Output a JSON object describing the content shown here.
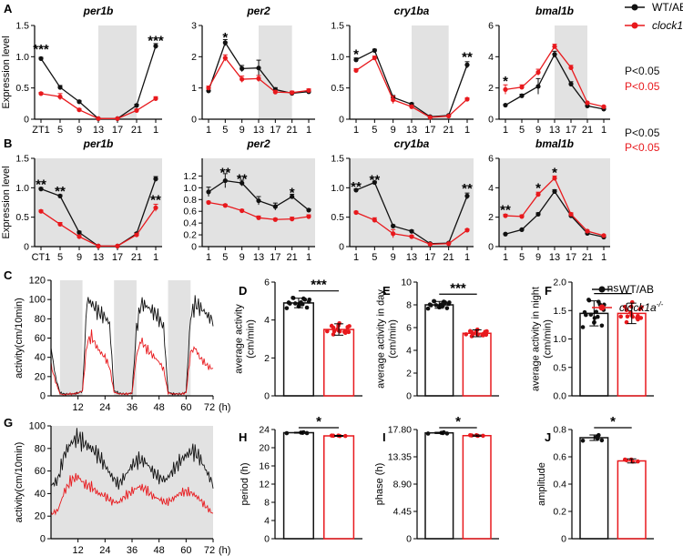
{
  "colors": {
    "wt": "#111111",
    "ko": "#e8191d",
    "shade": "#e2e2e2"
  },
  "legend": {
    "wt_label": "WT/AB",
    "ko_label": "clock1a",
    "ko_sup": "-/-",
    "p_wt": "P<0.05",
    "p_ko": "P<0.05"
  },
  "panels": {
    "A": "A",
    "B": "B",
    "C": "C",
    "D": "D",
    "E": "E",
    "F": "F",
    "G": "G",
    "H": "H",
    "I": "I",
    "J": "J"
  },
  "chart_data": [
    {
      "id": "A-per1b",
      "panel": "A",
      "type": "line",
      "title": "per1b",
      "ylabel": "Expression level",
      "ylim": [
        0,
        1.5
      ],
      "yticks": [
        "0",
        "0.5",
        "1.0",
        "1.5"
      ],
      "ytick_values": [
        0,
        0.5,
        1.0,
        1.5
      ],
      "categories": [
        "ZT1",
        "5",
        "9",
        "13",
        "17",
        "21",
        "1"
      ],
      "shade_categories": [
        3,
        5
      ],
      "series": [
        {
          "values": [
            0.97,
            0.51,
            0.28,
            0.01,
            0.01,
            0.22,
            1.17
          ],
          "err": [
            0.02,
            0.03,
            0.02,
            0.01,
            0.01,
            0.02,
            0.04
          ]
        },
        {
          "values": [
            0.41,
            0.36,
            0.15,
            0.01,
            0.01,
            0.14,
            0.33
          ],
          "err": [
            0.02,
            0.05,
            0.02,
            0.01,
            0.01,
            0.02,
            0.03
          ]
        }
      ],
      "stars": [
        {
          "i": 0,
          "y": 1.12,
          "t": "***"
        },
        {
          "i": 6,
          "y": 1.26,
          "t": "***"
        }
      ]
    },
    {
      "id": "A-per2",
      "panel": "A",
      "type": "line",
      "title": "per2",
      "ylabel": "",
      "ylim": [
        0,
        3
      ],
      "yticks": [
        "0",
        "1",
        "2",
        "3"
      ],
      "ytick_values": [
        0,
        1,
        2,
        3
      ],
      "categories": [
        "1",
        "5",
        "9",
        "13",
        "17",
        "21",
        "1"
      ],
      "shade_categories": [
        3,
        5
      ],
      "series": [
        {
          "values": [
            0.91,
            2.45,
            1.62,
            1.64,
            0.95,
            0.83,
            0.88
          ],
          "err": [
            0.08,
            0.1,
            0.1,
            0.25,
            0.06,
            0.05,
            0.05
          ]
        },
        {
          "values": [
            1.0,
            1.96,
            1.28,
            1.3,
            0.87,
            0.85,
            0.92
          ],
          "err": [
            0.06,
            0.1,
            0.1,
            0.1,
            0.05,
            0.05,
            0.05
          ]
        }
      ],
      "stars": [
        {
          "i": 1,
          "y": 2.62,
          "t": "*"
        }
      ]
    },
    {
      "id": "A-cry1ba",
      "panel": "A",
      "type": "line",
      "title": "cry1ba",
      "ylabel": "",
      "ylim": [
        0,
        1.5
      ],
      "yticks": [
        "0",
        "0.5",
        "1.0",
        "1.5"
      ],
      "ytick_values": [
        0,
        0.5,
        1.0,
        1.5
      ],
      "categories": [
        "1",
        "5",
        "9",
        "13",
        "17",
        "21",
        "1"
      ],
      "shade_categories": [
        3,
        5
      ],
      "series": [
        {
          "values": [
            0.95,
            1.1,
            0.35,
            0.24,
            0.04,
            0.06,
            0.87
          ],
          "err": [
            0.03,
            0.02,
            0.03,
            0.02,
            0.01,
            0.01,
            0.05
          ]
        },
        {
          "values": [
            0.78,
            0.98,
            0.31,
            0.2,
            0.03,
            0.05,
            0.32
          ],
          "err": [
            0.03,
            0.03,
            0.06,
            0.02,
            0.01,
            0.01,
            0.02
          ]
        }
      ],
      "stars": [
        {
          "i": 0,
          "y": 1.04,
          "t": "*"
        },
        {
          "i": 6,
          "y": 1.0,
          "t": "**"
        }
      ]
    },
    {
      "id": "A-bmal1b",
      "panel": "A",
      "type": "line",
      "title": "bmal1b",
      "ylabel": "",
      "ylim": [
        0,
        6
      ],
      "yticks": [
        "0",
        "2",
        "4",
        "6"
      ],
      "ytick_values": [
        0,
        2,
        4,
        6
      ],
      "categories": [
        "1",
        "5",
        "9",
        "13",
        "17",
        "21",
        "1"
      ],
      "shade_categories": [
        3,
        5
      ],
      "series": [
        {
          "values": [
            0.9,
            1.5,
            2.1,
            4.15,
            2.25,
            0.85,
            0.65
          ],
          "err": [
            0.05,
            0.1,
            0.5,
            0.2,
            0.15,
            0.05,
            0.05
          ]
        },
        {
          "values": [
            1.9,
            2.05,
            3.0,
            4.65,
            3.3,
            1.05,
            0.8
          ],
          "err": [
            0.3,
            0.15,
            0.2,
            0.15,
            0.15,
            0.05,
            0.05
          ]
        }
      ],
      "stars": [
        {
          "i": 0,
          "y": 2.45,
          "t": "*"
        }
      ]
    },
    {
      "id": "B-per1b",
      "panel": "B",
      "type": "line",
      "title": "per1b",
      "ylabel": "Expression level",
      "ylim": [
        0,
        1.5
      ],
      "yticks": [
        "0",
        "0.5",
        "1.0",
        "1.5"
      ],
      "ytick_values": [
        0,
        0.5,
        1.0,
        1.5
      ],
      "categories": [
        "CT1",
        "5",
        "9",
        "13",
        "17",
        "21",
        "1"
      ],
      "shade_categories": [
        0,
        6
      ],
      "series": [
        {
          "values": [
            0.98,
            0.86,
            0.24,
            0.01,
            0.01,
            0.22,
            1.15
          ],
          "err": [
            0.02,
            0.02,
            0.02,
            0.01,
            0.01,
            0.02,
            0.04
          ]
        },
        {
          "values": [
            0.6,
            0.38,
            0.17,
            0.01,
            0.01,
            0.2,
            0.66
          ],
          "err": [
            0.02,
            0.03,
            0.02,
            0.01,
            0.01,
            0.02,
            0.06
          ]
        }
      ],
      "stars": [
        {
          "i": 0,
          "y": 1.06,
          "t": "**"
        },
        {
          "i": 1,
          "y": 0.94,
          "t": "**"
        },
        {
          "i": 6,
          "y": 0.8,
          "t": "**"
        }
      ]
    },
    {
      "id": "B-per2",
      "panel": "B",
      "type": "line",
      "title": "per2",
      "ylabel": "",
      "ylim": [
        0,
        1.5
      ],
      "yticks": [
        "0",
        "0.2",
        "0.4",
        "0.6",
        "0.8",
        "1.0",
        "1.2"
      ],
      "ytick_values": [
        0,
        0.2,
        0.4,
        0.6,
        0.8,
        1.0,
        1.2
      ],
      "categories": [
        "1",
        "5",
        "9",
        "13",
        "17",
        "21",
        "1"
      ],
      "shade_categories": [
        0,
        6
      ],
      "series": [
        {
          "values": [
            0.93,
            1.12,
            1.08,
            0.78,
            0.68,
            0.85,
            0.62
          ],
          "err": [
            0.08,
            0.12,
            0.05,
            0.07,
            0.06,
            0.04,
            0.02
          ]
        },
        {
          "values": [
            0.75,
            0.7,
            0.61,
            0.49,
            0.46,
            0.47,
            0.51
          ],
          "err": [
            0.02,
            0.02,
            0.02,
            0.03,
            0.02,
            0.03,
            0.03
          ]
        }
      ],
      "stars": [
        {
          "i": 1,
          "y": 1.26,
          "t": "**"
        },
        {
          "i": 2,
          "y": 1.15,
          "t": "**"
        },
        {
          "i": 5,
          "y": 0.92,
          "t": "*"
        }
      ]
    },
    {
      "id": "B-cry1ba",
      "panel": "B",
      "type": "line",
      "title": "cry1ba",
      "ylabel": "",
      "ylim": [
        0,
        1.5
      ],
      "yticks": [
        "0",
        "0.5",
        "1.0",
        "1.5"
      ],
      "ytick_values": [
        0,
        0.5,
        1.0,
        1.5
      ],
      "categories": [
        "1",
        "5",
        "9",
        "13",
        "17",
        "21",
        "1"
      ],
      "shade_categories": [
        0,
        6
      ],
      "series": [
        {
          "values": [
            0.96,
            1.09,
            0.35,
            0.26,
            0.05,
            0.06,
            0.86
          ],
          "err": [
            0.02,
            0.02,
            0.02,
            0.02,
            0.01,
            0.01,
            0.05
          ]
        },
        {
          "values": [
            0.58,
            0.45,
            0.22,
            0.17,
            0.04,
            0.05,
            0.28
          ],
          "err": [
            0.02,
            0.04,
            0.07,
            0.02,
            0.01,
            0.01,
            0.02
          ]
        }
      ],
      "stars": [
        {
          "i": 0,
          "y": 1.02,
          "t": "**"
        },
        {
          "i": 1,
          "y": 1.14,
          "t": "**"
        },
        {
          "i": 6,
          "y": 0.99,
          "t": "**"
        }
      ]
    },
    {
      "id": "B-bmal1b",
      "panel": "B",
      "type": "line",
      "title": "bmal1b",
      "ylabel": "",
      "ylim": [
        0,
        6
      ],
      "yticks": [
        "0",
        "2",
        "4",
        "6"
      ],
      "ytick_values": [
        0,
        2,
        4,
        6
      ],
      "categories": [
        "1",
        "5",
        "9",
        "13",
        "17",
        "21",
        "1"
      ],
      "shade_categories": [
        0,
        6
      ],
      "series": [
        {
          "values": [
            0.85,
            1.15,
            2.2,
            3.75,
            2.1,
            0.9,
            0.65
          ],
          "err": [
            0.05,
            0.05,
            0.1,
            0.12,
            0.1,
            0.05,
            0.05
          ]
        },
        {
          "values": [
            2.1,
            2.05,
            3.55,
            4.65,
            2.2,
            1.05,
            0.75
          ],
          "err": [
            0.1,
            0.1,
            0.15,
            0.15,
            0.1,
            0.05,
            0.05
          ]
        }
      ],
      "stars": [
        {
          "i": 0,
          "y": 2.5,
          "t": "**"
        },
        {
          "i": 2,
          "y": 4.0,
          "t": "*"
        },
        {
          "i": 3,
          "y": 5.05,
          "t": "*"
        }
      ]
    },
    {
      "id": "C",
      "panel": "C",
      "type": "line",
      "title": "",
      "ylabel": "activity(cm/10min)",
      "xlabel": "(h)",
      "ylim": [
        0,
        120
      ],
      "yticks": [
        "0",
        "20",
        "40",
        "60",
        "80",
        "100",
        "120"
      ],
      "ytick_values": [
        0,
        20,
        40,
        60,
        80,
        100,
        120
      ],
      "xlim": [
        0,
        72
      ],
      "xticks": [
        "12",
        "24",
        "36",
        "48",
        "60",
        "72"
      ],
      "xtick_values": [
        12,
        24,
        36,
        48,
        60,
        72
      ],
      "dark_periods": [
        [
          4,
          14
        ],
        [
          28,
          38
        ],
        [
          52,
          62
        ]
      ],
      "x": [
        0,
        2,
        4,
        6,
        8,
        10,
        12,
        14,
        16,
        18,
        20,
        22,
        24,
        26,
        28,
        30,
        32,
        34,
        36,
        38,
        40,
        42,
        44,
        46,
        48,
        50,
        52,
        54,
        56,
        58,
        60,
        62,
        64,
        66,
        68,
        70,
        72
      ],
      "series": [
        {
          "values": [
            50,
            20,
            3,
            2,
            2,
            2,
            3,
            5,
            100,
            96,
            90,
            85,
            82,
            75,
            5,
            3,
            2,
            2,
            3,
            70,
            96,
            94,
            90,
            86,
            80,
            72,
            4,
            2,
            2,
            2,
            4,
            82,
            95,
            92,
            88,
            82,
            78
          ]
        },
        {
          "values": [
            32,
            15,
            2,
            1,
            2,
            2,
            3,
            5,
            55,
            62,
            52,
            45,
            40,
            30,
            4,
            2,
            2,
            2,
            3,
            42,
            58,
            50,
            45,
            40,
            35,
            28,
            3,
            2,
            2,
            2,
            3,
            45,
            50,
            40,
            35,
            30,
            28
          ]
        }
      ]
    },
    {
      "id": "D",
      "panel": "D",
      "type": "bar",
      "title": "",
      "ylabel": "average activity\n(cm/min)",
      "ylim": [
        0,
        6
      ],
      "yticks": [
        "0",
        "2",
        "4",
        "6"
      ],
      "ytick_values": [
        0,
        2,
        4,
        6
      ],
      "values": [
        4.9,
        3.5
      ],
      "err": [
        0.25,
        0.3
      ],
      "sig": "***"
    },
    {
      "id": "E",
      "panel": "E",
      "type": "bar",
      "title": "",
      "ylabel": "average activity in day\n(cm/min)",
      "ylim": [
        0,
        10
      ],
      "yticks": [
        "0",
        "2",
        "4",
        "6",
        "8",
        "10"
      ],
      "ytick_values": [
        0,
        2,
        4,
        6,
        8,
        10
      ],
      "values": [
        8.0,
        5.5
      ],
      "err": [
        0.3,
        0.3
      ],
      "sig": "***"
    },
    {
      "id": "F",
      "panel": "F",
      "type": "bar",
      "title": "",
      "ylabel": "average activity in night\n(cm/min)",
      "ylim": [
        0,
        2.0
      ],
      "yticks": [
        "0.0",
        "0.5",
        "1.0",
        "1.5",
        "2.0"
      ],
      "ytick_values": [
        0,
        0.5,
        1.0,
        1.5,
        2.0
      ],
      "values": [
        1.45,
        1.45
      ],
      "err": [
        0.22,
        0.18
      ],
      "sig": "ns"
    },
    {
      "id": "G",
      "panel": "G",
      "type": "line",
      "title": "",
      "ylabel": "activity(cm/10min)",
      "xlabel": "(h)",
      "ylim": [
        0,
        100
      ],
      "yticks": [
        "0",
        "20",
        "40",
        "60",
        "80",
        "100"
      ],
      "ytick_values": [
        0,
        20,
        40,
        60,
        80,
        100
      ],
      "xlim": [
        0,
        72
      ],
      "xticks": [
        "12",
        "24",
        "36",
        "48",
        "60",
        "72"
      ],
      "xtick_values": [
        12,
        24,
        36,
        48,
        60,
        72
      ],
      "dark_periods": [
        [
          0,
          72
        ]
      ],
      "x": [
        0,
        3,
        6,
        9,
        12,
        15,
        18,
        21,
        24,
        27,
        30,
        33,
        36,
        39,
        42,
        45,
        48,
        51,
        54,
        57,
        60,
        63,
        66,
        69,
        72
      ],
      "series": [
        {
          "values": [
            47,
            52,
            75,
            85,
            90,
            84,
            80,
            74,
            65,
            55,
            48,
            56,
            65,
            70,
            68,
            60,
            54,
            52,
            60,
            68,
            74,
            78,
            72,
            60,
            48
          ]
        },
        {
          "values": [
            22,
            25,
            42,
            52,
            55,
            48,
            46,
            40,
            38,
            33,
            32,
            38,
            42,
            46,
            44,
            38,
            35,
            32,
            35,
            40,
            42,
            40,
            35,
            28,
            22
          ]
        }
      ]
    },
    {
      "id": "H",
      "panel": "H",
      "type": "bar",
      "title": "",
      "ylabel": "period (h)",
      "ylim": [
        0,
        24
      ],
      "yticks": [
        "0",
        "4",
        "8",
        "12",
        "16",
        "20",
        "24"
      ],
      "ytick_values": [
        0,
        4,
        8,
        12,
        16,
        20,
        24
      ],
      "values": [
        23.3,
        22.6
      ],
      "err": [
        0.1,
        0.1
      ],
      "sig": "*"
    },
    {
      "id": "I",
      "panel": "I",
      "type": "bar",
      "title": "",
      "ylabel": "phase (h)",
      "ylim": [
        0,
        17.8
      ],
      "yticks": [
        "0",
        "4.45",
        "8.90",
        "13.35",
        "17.80"
      ],
      "ytick_values": [
        0,
        4.45,
        8.9,
        13.35,
        17.8
      ],
      "values": [
        17.25,
        16.8
      ],
      "err": [
        0.1,
        0.1
      ],
      "sig": "*"
    },
    {
      "id": "J",
      "panel": "J",
      "type": "bar",
      "title": "",
      "ylabel": "amplitude",
      "ylim": [
        0,
        0.8
      ],
      "yticks": [
        "0",
        "0.2",
        "0.4",
        "0.6",
        "0.8"
      ],
      "ytick_values": [
        0,
        0.2,
        0.4,
        0.6,
        0.8
      ],
      "values": [
        0.74,
        0.57
      ],
      "err": [
        0.02,
        0.015
      ],
      "sig": "*"
    }
  ]
}
